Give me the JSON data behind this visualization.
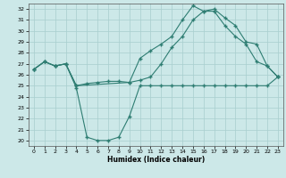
{
  "title": "",
  "xlabel": "Humidex (Indice chaleur)",
  "ylabel": "",
  "xlim": [
    -0.5,
    23.5
  ],
  "ylim": [
    19.5,
    32.5
  ],
  "yticks": [
    20,
    21,
    22,
    23,
    24,
    25,
    26,
    27,
    28,
    29,
    30,
    31,
    32
  ],
  "xticks": [
    0,
    1,
    2,
    3,
    4,
    5,
    6,
    7,
    8,
    9,
    10,
    11,
    12,
    13,
    14,
    15,
    16,
    17,
    18,
    19,
    20,
    21,
    22,
    23
  ],
  "bg_color": "#cce8e8",
  "line_color": "#2e7d72",
  "lines": [
    {
      "x": [
        0,
        1,
        2,
        3,
        4,
        5,
        6,
        7,
        8,
        9,
        10,
        11,
        12,
        13,
        14,
        15,
        16,
        17,
        18,
        19,
        20,
        21,
        22,
        23
      ],
      "y": [
        26.5,
        27.2,
        26.8,
        27.0,
        24.8,
        20.3,
        20.0,
        20.0,
        20.3,
        22.2,
        25.0,
        25.0,
        25.0,
        25.0,
        25.0,
        25.0,
        25.0,
        25.0,
        25.0,
        25.0,
        25.0,
        25.0,
        25.0,
        25.8
      ]
    },
    {
      "x": [
        0,
        1,
        2,
        3,
        4,
        5,
        6,
        7,
        8,
        9,
        10,
        11,
        12,
        13,
        14,
        15,
        16,
        17,
        18,
        19,
        20,
        21,
        22,
        23
      ],
      "y": [
        26.5,
        27.2,
        26.8,
        27.0,
        25.0,
        25.2,
        25.3,
        25.4,
        25.4,
        25.3,
        25.5,
        25.8,
        27.0,
        28.5,
        29.5,
        31.0,
        31.8,
        31.8,
        30.5,
        29.5,
        28.8,
        27.2,
        26.8,
        25.8
      ]
    },
    {
      "x": [
        0,
        1,
        2,
        3,
        4,
        9,
        10,
        11,
        12,
        13,
        14,
        15,
        16,
        17,
        18,
        19,
        20,
        21,
        22,
        23
      ],
      "y": [
        26.5,
        27.2,
        26.8,
        27.0,
        25.0,
        25.3,
        27.5,
        28.2,
        28.8,
        29.5,
        31.0,
        32.3,
        31.8,
        32.0,
        31.2,
        30.5,
        29.0,
        28.8,
        26.8,
        25.8
      ]
    }
  ]
}
